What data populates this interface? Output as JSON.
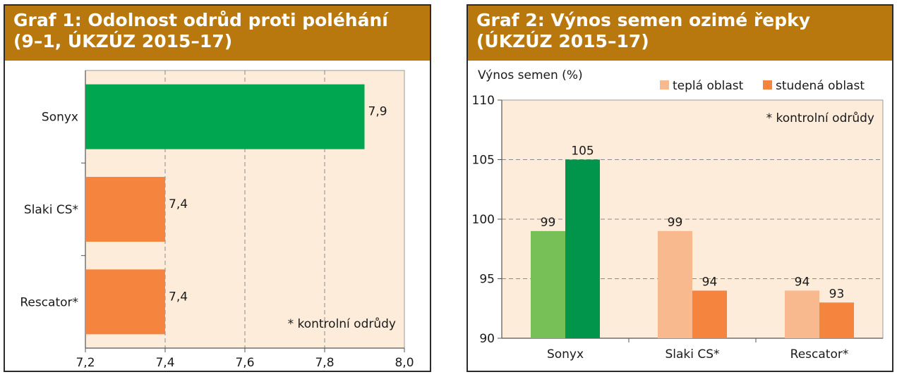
{
  "chart_data": [
    {
      "type": "bar",
      "orientation": "horizontal",
      "title_line1": "Graf 1: Odolnost odrůd proti poléhání",
      "title_line2": "(9–1, ÚKZÚZ 2015–17)",
      "categories": [
        "Sonyx",
        "Slaki CS*",
        "Rescator*"
      ],
      "values": [
        7.9,
        7.4,
        7.4
      ],
      "value_labels": [
        "7,9",
        "7,4",
        "7,4"
      ],
      "bar_colors": [
        "#00a650",
        "#f5843f",
        "#f5843f"
      ],
      "xlim": [
        7.2,
        8.0
      ],
      "xticks": [
        7.2,
        7.4,
        7.6,
        7.8,
        8.0
      ],
      "xtick_labels": [
        "7,2",
        "7,4",
        "7,6",
        "7,8",
        "8,0"
      ],
      "grid": "vertical dashed",
      "annotation": "* kontrolní odrůdy",
      "plot_background": "#fdecd9"
    },
    {
      "type": "bar",
      "orientation": "vertical",
      "title_line1": "Graf 2: Výnos semen ozimé řepky",
      "title_line2": "(ÚKZÚZ 2015–17)",
      "ylabel": "Výnos semen (%)",
      "categories": [
        "Sonyx",
        "Slaki CS*",
        "Rescator*"
      ],
      "series": [
        {
          "name": "teplá oblast",
          "values": [
            99,
            99,
            94
          ],
          "colors": [
            "#77bf57",
            "#f9b98f",
            "#f9b98f"
          ]
        },
        {
          "name": "studená oblast",
          "values": [
            105,
            94,
            93
          ],
          "colors": [
            "#00954a",
            "#f5843f",
            "#f5843f"
          ]
        }
      ],
      "legend_colors": [
        "#f9b98f",
        "#f5843f"
      ],
      "legend": "top-right",
      "ylim": [
        90,
        110
      ],
      "yticks": [
        90,
        95,
        100,
        105,
        110
      ],
      "grid": "horizontal dashed",
      "annotation": "* kontrolní odrůdy",
      "plot_background": "#fdecd9"
    }
  ]
}
